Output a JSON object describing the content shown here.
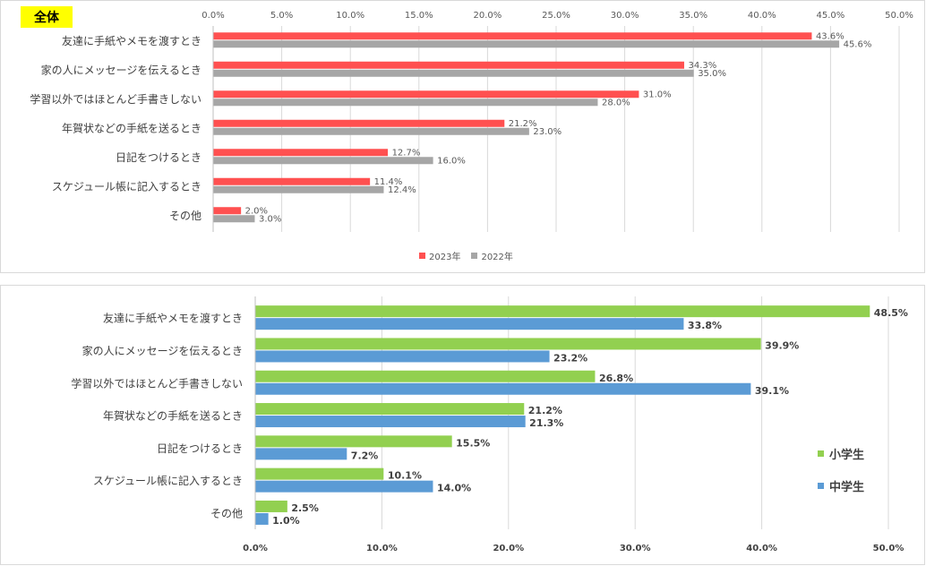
{
  "chart_data": [
    {
      "type": "bar",
      "orientation": "horizontal",
      "title": "全体",
      "categories": [
        "友達に手紙やメモを渡すとき",
        "家の人にメッセージを伝えるとき",
        "学習以外ではほとんど手書きしない",
        "年賀状などの手紙を送るとき",
        "日記をつけるとき",
        "スケジュール帳に記入するとき",
        "その他"
      ],
      "series": [
        {
          "name": "2023年",
          "color": "#ff5050",
          "values": [
            43.6,
            34.3,
            31.0,
            21.2,
            12.7,
            11.4,
            2.0
          ]
        },
        {
          "name": "2022年",
          "color": "#a6a6a6",
          "values": [
            45.6,
            35.0,
            28.0,
            23.0,
            16.0,
            12.4,
            3.0
          ]
        }
      ],
      "ticks": [
        "0.0%",
        "5.0%",
        "10.0%",
        "15.0%",
        "20.0%",
        "25.0%",
        "30.0%",
        "35.0%",
        "40.0%",
        "45.0%",
        "50.0%"
      ],
      "xlim": [
        0,
        50
      ],
      "axis_position": "top",
      "grid": true,
      "legend_position": "bottom"
    },
    {
      "type": "bar",
      "orientation": "horizontal",
      "categories": [
        "友達に手紙やメモを渡すとき",
        "家の人にメッセージを伝えるとき",
        "学習以外ではほとんど手書きしない",
        "年賀状などの手紙を送るとき",
        "日記をつけるとき",
        "スケジュール帳に記入するとき",
        "その他"
      ],
      "series": [
        {
          "name": "小学生",
          "color": "#92d050",
          "values": [
            48.5,
            39.9,
            26.8,
            21.2,
            15.5,
            10.1,
            2.5
          ]
        },
        {
          "name": "中学生",
          "color": "#5b9bd5",
          "values": [
            33.8,
            23.2,
            39.1,
            21.3,
            7.2,
            14.0,
            1.0
          ]
        }
      ],
      "ticks": [
        "0.0%",
        "10.0%",
        "20.0%",
        "30.0%",
        "40.0%",
        "50.0%"
      ],
      "xlim": [
        0,
        50
      ],
      "axis_position": "bottom",
      "grid": true,
      "legend_position": "right"
    }
  ]
}
